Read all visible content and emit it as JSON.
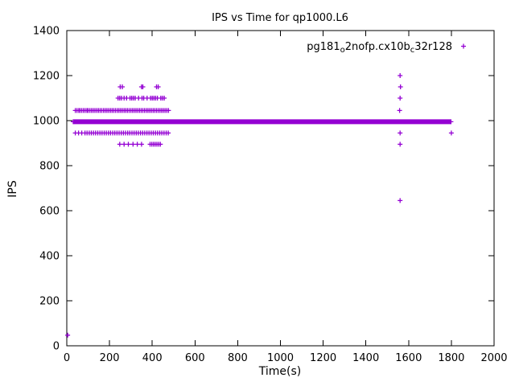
{
  "chart_data": {
    "type": "scatter",
    "title": "IPS vs Time for qp1000.L6",
    "xlabel": "Time(s)",
    "ylabel": "IPS",
    "xlim": [
      0,
      2000
    ],
    "ylim": [
      0,
      1400
    ],
    "xticks": [
      0,
      200,
      400,
      600,
      800,
      1000,
      1200,
      1400,
      1600,
      1800,
      2000
    ],
    "yticks": [
      0,
      200,
      400,
      600,
      800,
      1000,
      1200,
      1400
    ],
    "grid": false,
    "legend": {
      "position": "top-right",
      "full_label": "pg181_o2nofp.cx10b_c32r128",
      "parts": [
        "pg181",
        "o",
        "2nofp.cx10b",
        "c",
        "32r128"
      ]
    },
    "series": [
      {
        "name": "pg181_o2nofp.cx10b_c32r128",
        "color": "#9400d3",
        "marker": "plus",
        "band": {
          "x_start": 30,
          "x_end": 1800,
          "y": 995,
          "step": 4
        },
        "rows": [
          {
            "y": 1045,
            "xs": [
              40,
              48,
              56,
              62,
              70,
              78,
              86,
              94,
              100,
              108,
              116,
              124,
              132,
              140,
              148,
              156,
              164,
              172,
              180,
              188,
              196,
              204,
              212,
              220,
              228,
              236,
              244,
              252,
              260,
              268,
              276,
              284,
              292,
              300,
              308,
              316,
              324,
              332,
              340,
              348,
              356,
              364,
              372,
              380,
              388,
              396,
              404,
              412,
              420,
              428,
              436,
              444,
              452,
              460,
              468,
              476
            ]
          },
          {
            "y": 945,
            "xs": [
              40,
              55,
              70,
              85,
              95,
              105,
              115,
              125,
              135,
              145,
              155,
              165,
              175,
              185,
              195,
              205,
              215,
              225,
              235,
              245,
              255,
              265,
              275,
              285,
              295,
              305,
              315,
              325,
              335,
              345,
              355,
              365,
              375,
              385,
              395,
              405,
              415,
              425,
              435,
              445,
              455,
              465,
              475
            ]
          },
          {
            "y": 1100,
            "xs": [
              240,
              248,
              256,
              268,
              280,
              296,
              304,
              312,
              320,
              336,
              352,
              360,
              376,
              392,
              400,
              408,
              416,
              424,
              440,
              448,
              456
            ]
          },
          {
            "y": 1150,
            "xs": [
              250,
              260,
              350,
              356,
              420,
              428
            ]
          },
          {
            "y": 895,
            "xs": [
              248,
              268,
              288,
              310,
              330,
              350,
              390,
              398,
              406,
              414,
              422,
              430,
              438
            ]
          }
        ],
        "points": [
          [
            1560,
            1200
          ],
          [
            1562,
            1150
          ],
          [
            1560,
            1100
          ],
          [
            1558,
            1045
          ],
          [
            1560,
            945
          ],
          [
            1560,
            895
          ],
          [
            1560,
            645
          ],
          [
            1800,
            945
          ],
          [
            4,
            47
          ]
        ]
      }
    ]
  }
}
